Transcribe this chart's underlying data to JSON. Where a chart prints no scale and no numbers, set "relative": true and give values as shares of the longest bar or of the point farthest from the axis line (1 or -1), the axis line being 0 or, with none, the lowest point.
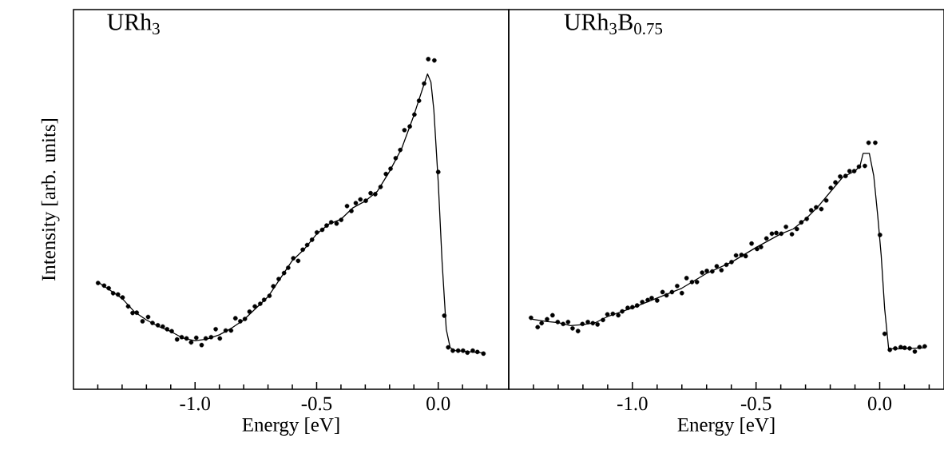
{
  "chart_data": [
    {
      "type": "scatter",
      "title": "URh$_{3}$",
      "xlabel": "Energy  [eV]",
      "ylabel": "Intensity [arb. units]",
      "relative": true,
      "xlim": [
        -1.5,
        0.29
      ],
      "xticks": [
        {
          "value": -1.4,
          "label": null
        },
        {
          "value": -1.3,
          "label": null
        },
        {
          "value": -1.2,
          "label": null
        },
        {
          "value": -1.1,
          "label": null
        },
        {
          "value": -1.0,
          "label": "-1.0"
        },
        {
          "value": -0.9,
          "label": null
        },
        {
          "value": -0.8,
          "label": null
        },
        {
          "value": -0.7,
          "label": null
        },
        {
          "value": -0.6,
          "label": null
        },
        {
          "value": -0.5,
          "label": "-0.5"
        },
        {
          "value": -0.4,
          "label": null
        },
        {
          "value": -0.3,
          "label": null
        },
        {
          "value": -0.2,
          "label": null
        },
        {
          "value": -0.1,
          "label": null
        },
        {
          "value": 0.0,
          "label": "0.0"
        },
        {
          "value": 0.1,
          "label": null
        },
        {
          "value": 0.2,
          "label": null
        }
      ],
      "series": [
        {
          "marker": "circle",
          "color": "#000000",
          "x": [
            -1.399,
            -1.374,
            -1.355,
            -1.337,
            -1.317,
            -1.298,
            -1.275,
            -1.257,
            -1.24,
            -1.216,
            -1.193,
            -1.175,
            -1.153,
            -1.133,
            -1.115,
            -1.096,
            -1.074,
            -1.055,
            -1.035,
            -1.016,
            -0.995,
            -0.973,
            -0.956,
            -0.934,
            -0.915,
            -0.898,
            -0.874,
            -0.852,
            -0.834,
            -0.814,
            -0.795,
            -0.776,
            -0.754,
            -0.732,
            -0.716,
            -0.694,
            -0.678,
            -0.656,
            -0.634,
            -0.617,
            -0.596,
            -0.576,
            -0.557,
            -0.539,
            -0.519,
            -0.499,
            -0.477,
            -0.459,
            -0.44,
            -0.418,
            -0.399,
            -0.375,
            -0.357,
            -0.339,
            -0.32,
            -0.298,
            -0.278,
            -0.259,
            -0.237,
            -0.215,
            -0.196,
            -0.175,
            -0.156,
            -0.139,
            -0.117,
            -0.098,
            -0.079,
            -0.058,
            -0.041,
            -0.016,
            0.0,
            0.025,
            0.041,
            0.06,
            0.082,
            0.102,
            0.12,
            0.142,
            0.161,
            0.186
          ],
          "values": [
            0.322,
            0.314,
            0.306,
            0.291,
            0.287,
            0.278,
            0.251,
            0.231,
            0.232,
            0.206,
            0.219,
            0.201,
            0.194,
            0.19,
            0.182,
            0.176,
            0.151,
            0.158,
            0.154,
            0.142,
            0.156,
            0.134,
            0.154,
            0.158,
            0.182,
            0.154,
            0.178,
            0.178,
            0.215,
            0.206,
            0.213,
            0.235,
            0.251,
            0.259,
            0.271,
            0.283,
            0.312,
            0.334,
            0.352,
            0.368,
            0.397,
            0.389,
            0.423,
            0.437,
            0.453,
            0.475,
            0.483,
            0.496,
            0.506,
            0.502,
            0.513,
            0.555,
            0.54,
            0.564,
            0.575,
            0.571,
            0.594,
            0.591,
            0.613,
            0.652,
            0.668,
            0.7,
            0.725,
            0.785,
            0.796,
            0.832,
            0.874,
            0.926,
            1.0,
            0.996,
            0.658,
            0.223,
            0.127,
            0.117,
            0.117,
            0.117,
            0.111,
            0.117,
            0.113,
            0.108
          ]
        },
        {
          "type": "line",
          "marker": "none",
          "color": "#000000",
          "x": [
            -1.4,
            -1.35,
            -1.3,
            -1.25,
            -1.2,
            -1.15,
            -1.1,
            -1.05,
            -1.0,
            -0.95,
            -0.9,
            -0.85,
            -0.8,
            -0.75,
            -0.7,
            -0.65,
            -0.6,
            -0.55,
            -0.5,
            -0.45,
            -0.4,
            -0.35,
            -0.3,
            -0.25,
            -0.2,
            -0.15,
            -0.1,
            -0.06,
            -0.044,
            -0.03,
            -0.018,
            0.0,
            0.016,
            0.033,
            0.049,
            0.07,
            0.19
          ],
          "values": [
            0.325,
            0.3,
            0.275,
            0.235,
            0.21,
            0.19,
            0.175,
            0.155,
            0.147,
            0.152,
            0.165,
            0.185,
            0.21,
            0.245,
            0.28,
            0.335,
            0.39,
            0.425,
            0.47,
            0.5,
            0.515,
            0.55,
            0.57,
            0.6,
            0.66,
            0.73,
            0.83,
            0.92,
            0.955,
            0.93,
            0.846,
            0.628,
            0.385,
            0.182,
            0.126,
            0.117,
            0.11
          ]
        }
      ]
    },
    {
      "type": "scatter",
      "title": "URh$_{3}$B$_{0.75}$",
      "xlabel": "Energy  [eV]",
      "relative": true,
      "xlim": [
        -1.5,
        0.26
      ],
      "xticks": [
        {
          "value": -1.4,
          "label": null
        },
        {
          "value": -1.3,
          "label": null
        },
        {
          "value": -1.2,
          "label": null
        },
        {
          "value": -1.1,
          "label": null
        },
        {
          "value": -1.0,
          "label": "-1.0"
        },
        {
          "value": -0.9,
          "label": null
        },
        {
          "value": -0.8,
          "label": null
        },
        {
          "value": -0.7,
          "label": null
        },
        {
          "value": -0.6,
          "label": null
        },
        {
          "value": -0.5,
          "label": "-0.5"
        },
        {
          "value": -0.4,
          "label": null
        },
        {
          "value": -0.3,
          "label": null
        },
        {
          "value": -0.2,
          "label": null
        },
        {
          "value": -0.1,
          "label": null
        },
        {
          "value": 0.0,
          "label": "0.0"
        },
        {
          "value": 0.1,
          "label": null
        },
        {
          "value": 0.2,
          "label": null
        }
      ],
      "series": [
        {
          "marker": "circle",
          "color": "#000000",
          "x": [
            -1.41,
            -1.383,
            -1.367,
            -1.345,
            -1.323,
            -1.302,
            -1.28,
            -1.26,
            -1.242,
            -1.22,
            -1.202,
            -1.18,
            -1.16,
            -1.141,
            -1.119,
            -1.101,
            -1.079,
            -1.057,
            -1.041,
            -1.019,
            -1.0,
            -0.981,
            -0.96,
            -0.938,
            -0.922,
            -0.9,
            -0.878,
            -0.862,
            -0.84,
            -0.819,
            -0.8,
            -0.781,
            -0.759,
            -0.739,
            -0.718,
            -0.699,
            -0.677,
            -0.659,
            -0.64,
            -0.62,
            -0.599,
            -0.581,
            -0.559,
            -0.542,
            -0.518,
            -0.496,
            -0.48,
            -0.458,
            -0.436,
            -0.418,
            -0.398,
            -0.379,
            -0.355,
            -0.335,
            -0.317,
            -0.295,
            -0.277,
            -0.257,
            -0.236,
            -0.216,
            -0.198,
            -0.179,
            -0.16,
            -0.138,
            -0.122,
            -0.103,
            -0.084,
            -0.06,
            -0.045,
            -0.018,
            0.001,
            0.02,
            0.041,
            0.063,
            0.085,
            0.101,
            0.121,
            0.142,
            0.161,
            0.182
          ],
          "values": [
            0.29,
            0.252,
            0.268,
            0.284,
            0.3,
            0.273,
            0.265,
            0.273,
            0.247,
            0.236,
            0.265,
            0.273,
            0.268,
            0.263,
            0.281,
            0.304,
            0.306,
            0.3,
            0.316,
            0.33,
            0.333,
            0.34,
            0.354,
            0.362,
            0.37,
            0.36,
            0.394,
            0.381,
            0.394,
            0.419,
            0.39,
            0.451,
            0.435,
            0.435,
            0.473,
            0.48,
            0.478,
            0.499,
            0.483,
            0.505,
            0.516,
            0.543,
            0.545,
            0.54,
            0.591,
            0.569,
            0.577,
            0.612,
            0.631,
            0.634,
            0.631,
            0.659,
            0.629,
            0.65,
            0.677,
            0.691,
            0.726,
            0.738,
            0.731,
            0.766,
            0.817,
            0.839,
            0.863,
            0.865,
            0.885,
            0.885,
            0.903,
            0.906,
            1.0,
            1.0,
            0.626,
            0.225,
            0.16,
            0.166,
            0.171,
            0.168,
            0.166,
            0.153,
            0.171,
            0.174
          ]
        },
        {
          "type": "line",
          "marker": "none",
          "color": "#000000",
          "x": [
            -1.41,
            -1.35,
            -1.3,
            -1.25,
            -1.2,
            -1.15,
            -1.1,
            -1.0,
            -0.9,
            -0.8,
            -0.7,
            -0.6,
            -0.5,
            -0.4,
            -0.35,
            -0.3,
            -0.25,
            -0.2,
            -0.15,
            -0.1,
            -0.08,
            -0.067,
            -0.042,
            -0.024,
            -0.008,
            0.006,
            0.02,
            0.036,
            0.06,
            0.18
          ],
          "values": [
            0.285,
            0.275,
            0.27,
            0.258,
            0.262,
            0.27,
            0.295,
            0.33,
            0.37,
            0.41,
            0.47,
            0.515,
            0.575,
            0.63,
            0.65,
            0.69,
            0.74,
            0.8,
            0.86,
            0.885,
            0.905,
            0.957,
            0.957,
            0.865,
            0.704,
            0.543,
            0.327,
            0.166,
            0.163,
            0.168
          ]
        }
      ]
    }
  ]
}
